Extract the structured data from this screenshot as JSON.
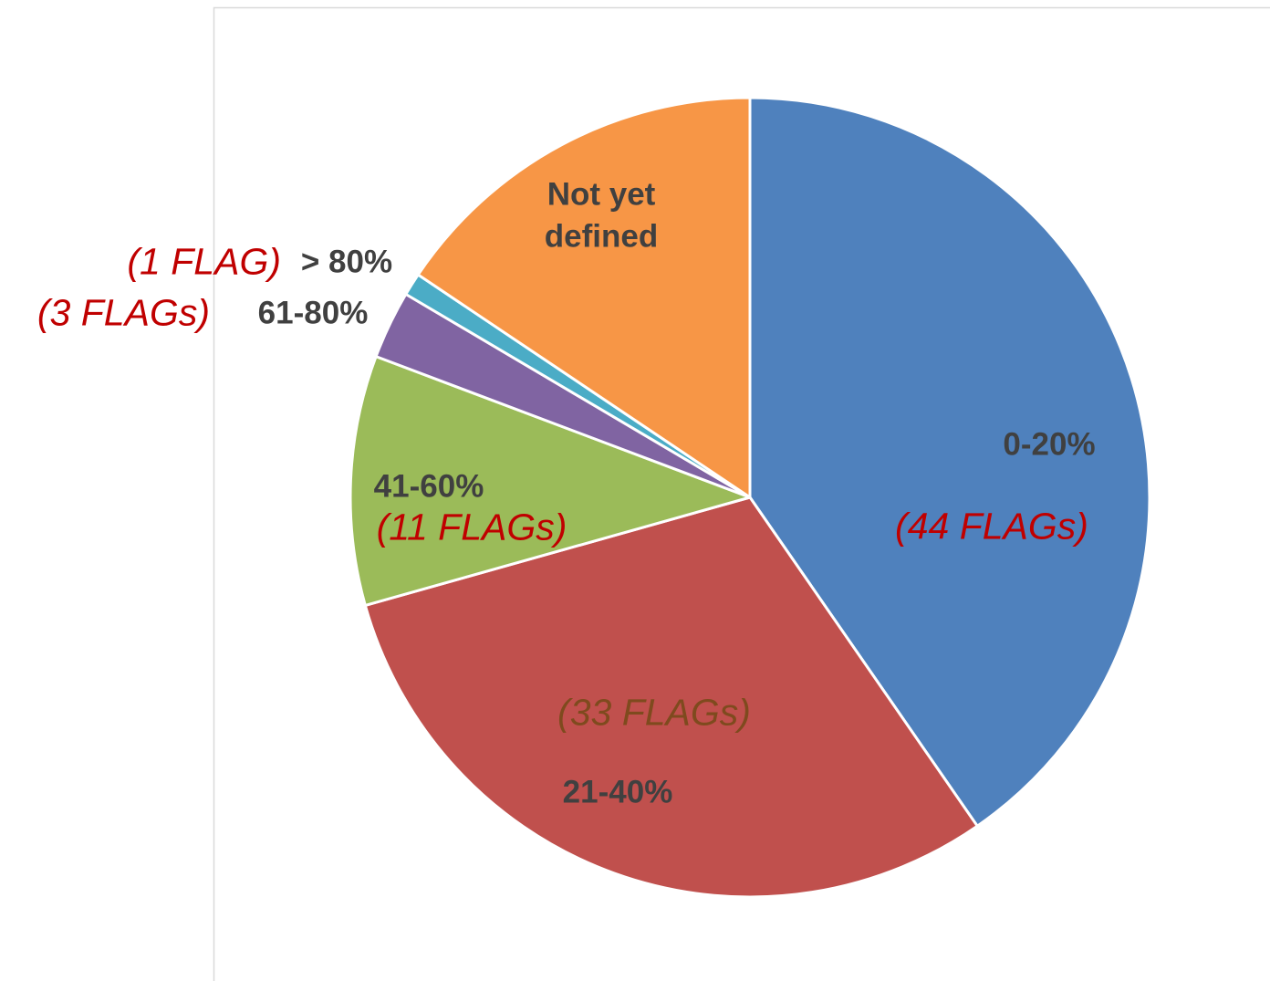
{
  "chart_data": {
    "type": "pie",
    "categories": [
      "0-20%",
      "21-40%",
      "41-60%",
      "61-80%",
      "> 80%",
      "Not yet defined"
    ],
    "values": [
      44,
      33,
      11,
      3,
      1,
      17
    ],
    "value_labels": [
      "(44 FLAGs)",
      "(33 FLAGs)",
      "(11 FLAGs)",
      "(3 FLAGs)",
      "(1 FLAG)",
      null
    ],
    "colors": [
      "#4f81bd",
      "#c0504d",
      "#9bbb59",
      "#8064a2",
      "#4bacc6",
      "#f79646"
    ],
    "value_label_colors": [
      "#c00000",
      "#7f4a1e",
      "#c00000",
      "#c00000",
      "#c00000",
      null
    ]
  }
}
